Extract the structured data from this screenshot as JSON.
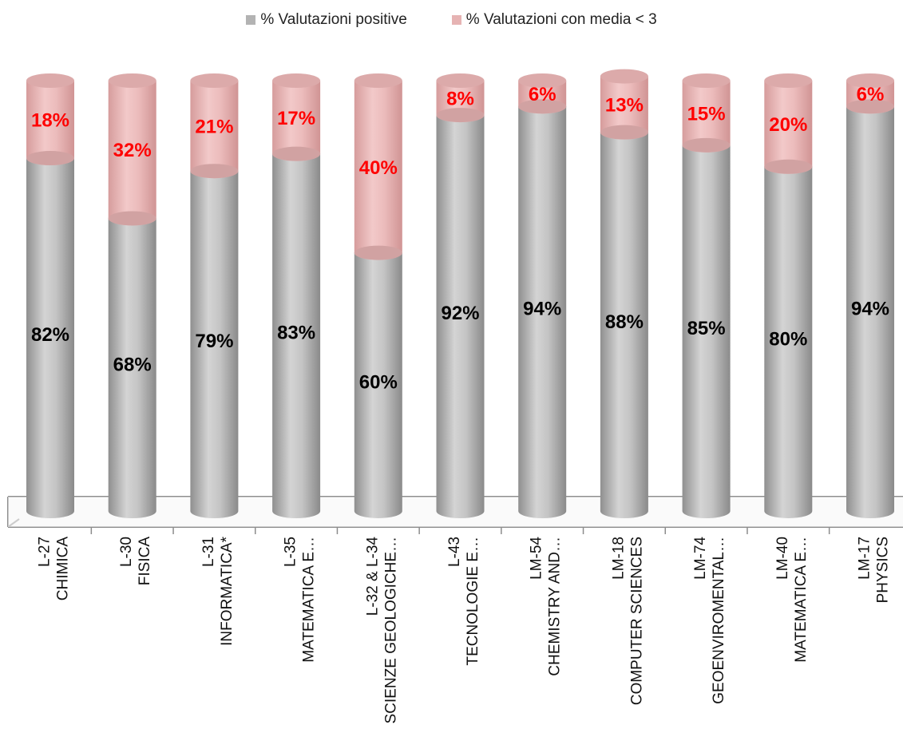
{
  "colors": {
    "positive": "#b3b3b3",
    "negative": "#e6b3b3",
    "positive_label": "#000000",
    "negative_label": "#ff0000",
    "floor": "#8c8c8c"
  },
  "chart_data": {
    "type": "bar",
    "stacked": true,
    "style": "3d-cylinder",
    "title": "",
    "xlabel": "",
    "ylabel": "",
    "ylim": [
      0,
      100
    ],
    "grid": false,
    "legend_position": "top",
    "categories": [
      [
        "L-27",
        "CHIMICA"
      ],
      [
        "L-30",
        "FISICA"
      ],
      [
        "L-31",
        "INFORMATICA*"
      ],
      [
        "L-35",
        "MATEMATICA E…"
      ],
      [
        "L-32 & L-34",
        "SCIENZE GEOLOGICHE…"
      ],
      [
        "L-43",
        "TECNOLOGIE E…"
      ],
      [
        "LM-54",
        "CHEMISTRY AND…"
      ],
      [
        "LM-18",
        "COMPUTER SCIENCES"
      ],
      [
        "LM-74",
        "GEOENVIROMENTAL…"
      ],
      [
        "LM-40",
        "MATEMATICA E…"
      ],
      [
        "LM-17",
        "PHYSICS"
      ]
    ],
    "series": [
      {
        "name": "% Valutazioni positive",
        "values": [
          82,
          68,
          79,
          83,
          60,
          92,
          94,
          88,
          85,
          80,
          94
        ],
        "labels": [
          "82%",
          "68%",
          "79%",
          "83%",
          "60%",
          "92%",
          "94%",
          "88%",
          "85%",
          "80%",
          "94%"
        ]
      },
      {
        "name": "% Valutazioni con media < 3",
        "values": [
          18,
          32,
          21,
          17,
          40,
          8,
          6,
          13,
          15,
          20,
          6
        ],
        "labels": [
          "18%",
          "32%",
          "21%",
          "17%",
          "40%",
          "8%",
          "6%",
          "13%",
          "15%",
          "20%",
          "6%"
        ]
      }
    ]
  }
}
